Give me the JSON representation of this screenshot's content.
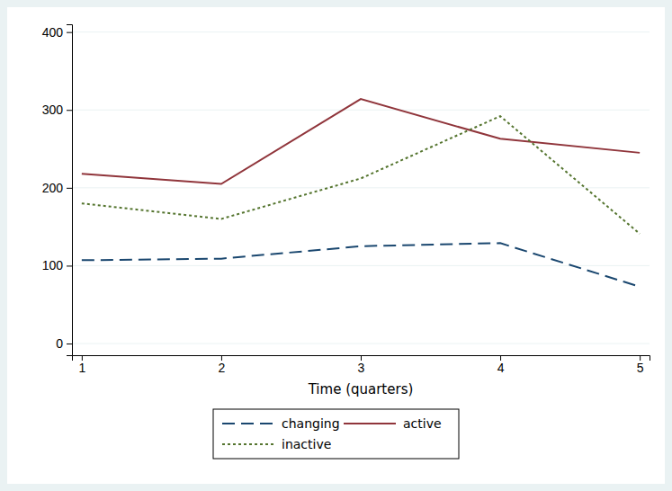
{
  "chart_data": {
    "type": "line",
    "x_label": "Time (quarters)",
    "x": [
      1,
      2,
      3,
      4,
      5
    ],
    "series": [
      {
        "name": "changing",
        "color": "#1a476f",
        "line_style": "dashed",
        "values": [
          107,
          109,
          125,
          129,
          73
        ]
      },
      {
        "name": "active",
        "color": "#90353b",
        "line_style": "solid",
        "values": [
          218,
          205,
          314,
          263,
          245
        ]
      },
      {
        "name": "inactive",
        "color": "#55752f",
        "line_style": "dotted",
        "values": [
          180,
          160,
          212,
          292,
          141
        ]
      }
    ],
    "xlim": [
      0.93,
      5.07
    ],
    "xticks": [
      1,
      2,
      3,
      4,
      5
    ],
    "ylim": [
      -15,
      410
    ],
    "yticks": [
      0,
      100,
      200,
      300,
      400
    ],
    "grid": true,
    "legend": "bottom"
  }
}
